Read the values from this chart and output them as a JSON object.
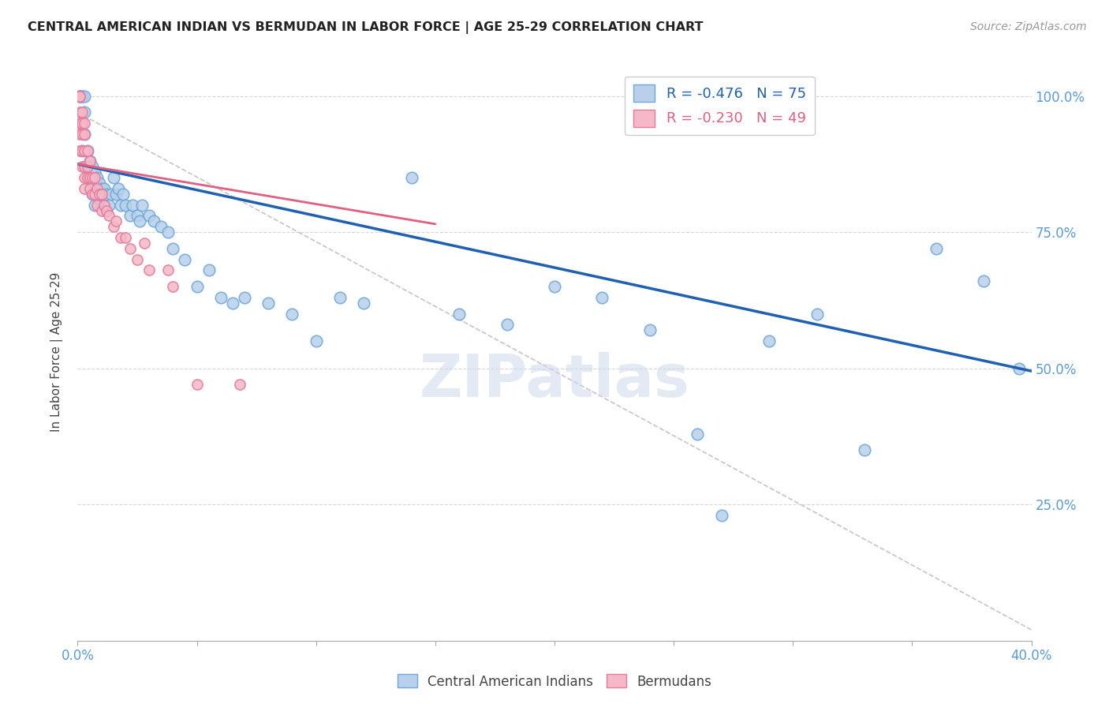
{
  "title": "CENTRAL AMERICAN INDIAN VS BERMUDAN IN LABOR FORCE | AGE 25-29 CORRELATION CHART",
  "source": "Source: ZipAtlas.com",
  "ylabel": "In Labor Force | Age 25-29",
  "xlim": [
    0.0,
    0.4
  ],
  "ylim": [
    0.0,
    1.06
  ],
  "xtick_positions": [
    0.0,
    0.05,
    0.1,
    0.15,
    0.2,
    0.25,
    0.3,
    0.35,
    0.4
  ],
  "xticklabels": [
    "0.0%",
    "",
    "",
    "",
    "",
    "",
    "",
    "",
    "40.0%"
  ],
  "ytick_positions": [
    0.0,
    0.25,
    0.5,
    0.75,
    1.0
  ],
  "yticklabels": [
    "",
    "25.0%",
    "50.0%",
    "75.0%",
    "100.0%"
  ],
  "blue_R": -0.476,
  "blue_N": 75,
  "pink_R": -0.23,
  "pink_N": 49,
  "blue_color": "#b8d0eb",
  "blue_edge": "#6fa8d8",
  "pink_color": "#f4b8c8",
  "pink_edge": "#e87a9a",
  "blue_line_color": "#2060b0",
  "pink_line_color": "#e06080",
  "gray_dash_color": "#d0c0c8",
  "watermark": "ZIPatlas",
  "blue_line_x0": 0.0,
  "blue_line_y0": 0.875,
  "blue_line_x1": 0.4,
  "blue_line_y1": 0.495,
  "pink_line_x0": 0.0,
  "pink_line_y0": 0.875,
  "pink_line_x1": 0.15,
  "pink_line_y1": 0.765,
  "gray_line_x0": 0.0,
  "gray_line_y0": 0.97,
  "gray_line_x1": 0.4,
  "gray_line_y1": 0.02,
  "blue_scatter_x": [
    0.001,
    0.001,
    0.001,
    0.002,
    0.002,
    0.002,
    0.002,
    0.003,
    0.003,
    0.003,
    0.004,
    0.004,
    0.004,
    0.005,
    0.005,
    0.005,
    0.006,
    0.006,
    0.006,
    0.007,
    0.007,
    0.007,
    0.008,
    0.008,
    0.009,
    0.009,
    0.01,
    0.01,
    0.011,
    0.011,
    0.012,
    0.012,
    0.013,
    0.014,
    0.015,
    0.016,
    0.017,
    0.018,
    0.019,
    0.02,
    0.022,
    0.023,
    0.025,
    0.026,
    0.027,
    0.03,
    0.032,
    0.035,
    0.038,
    0.04,
    0.045,
    0.05,
    0.055,
    0.06,
    0.065,
    0.07,
    0.08,
    0.09,
    0.1,
    0.11,
    0.12,
    0.14,
    0.16,
    0.18,
    0.2,
    0.22,
    0.24,
    0.26,
    0.27,
    0.29,
    0.31,
    0.33,
    0.36,
    0.38,
    0.395
  ],
  "blue_scatter_y": [
    1.0,
    1.0,
    1.0,
    1.0,
    1.0,
    0.95,
    0.9,
    1.0,
    0.97,
    0.93,
    0.9,
    0.87,
    0.85,
    0.88,
    0.85,
    0.83,
    0.87,
    0.85,
    0.82,
    0.86,
    0.84,
    0.8,
    0.85,
    0.82,
    0.84,
    0.81,
    0.83,
    0.8,
    0.83,
    0.8,
    0.82,
    0.79,
    0.8,
    0.82,
    0.85,
    0.82,
    0.83,
    0.8,
    0.82,
    0.8,
    0.78,
    0.8,
    0.78,
    0.77,
    0.8,
    0.78,
    0.77,
    0.76,
    0.75,
    0.72,
    0.7,
    0.65,
    0.68,
    0.63,
    0.62,
    0.63,
    0.62,
    0.6,
    0.55,
    0.63,
    0.62,
    0.85,
    0.6,
    0.58,
    0.65,
    0.63,
    0.57,
    0.38,
    0.23,
    0.55,
    0.6,
    0.35,
    0.72,
    0.66,
    0.5
  ],
  "pink_scatter_x": [
    0.0005,
    0.001,
    0.001,
    0.001,
    0.001,
    0.001,
    0.001,
    0.001,
    0.002,
    0.002,
    0.002,
    0.002,
    0.002,
    0.003,
    0.003,
    0.003,
    0.003,
    0.003,
    0.003,
    0.004,
    0.004,
    0.004,
    0.005,
    0.005,
    0.005,
    0.006,
    0.006,
    0.007,
    0.007,
    0.008,
    0.008,
    0.009,
    0.01,
    0.01,
    0.011,
    0.012,
    0.013,
    0.015,
    0.016,
    0.018,
    0.02,
    0.022,
    0.025,
    0.028,
    0.03,
    0.038,
    0.04,
    0.05,
    0.068
  ],
  "pink_scatter_y": [
    1.0,
    1.0,
    1.0,
    1.0,
    0.97,
    0.95,
    0.93,
    0.9,
    0.97,
    0.95,
    0.93,
    0.9,
    0.87,
    0.95,
    0.93,
    0.9,
    0.87,
    0.85,
    0.83,
    0.9,
    0.87,
    0.85,
    0.88,
    0.85,
    0.83,
    0.85,
    0.82,
    0.85,
    0.82,
    0.83,
    0.8,
    0.82,
    0.82,
    0.79,
    0.8,
    0.79,
    0.78,
    0.76,
    0.77,
    0.74,
    0.74,
    0.72,
    0.7,
    0.73,
    0.68,
    0.68,
    0.65,
    0.47,
    0.47
  ]
}
